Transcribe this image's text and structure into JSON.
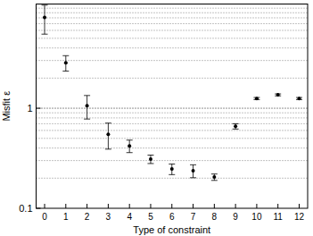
{
  "chart_data": {
    "type": "scatter",
    "x_label": "Type of constraint",
    "y_label": "Misfit ε",
    "x": [
      0,
      1,
      2,
      3,
      4,
      5,
      6,
      7,
      8,
      9,
      10,
      11,
      12
    ],
    "values": [
      8.1,
      2.85,
      1.06,
      0.55,
      0.42,
      0.31,
      0.247,
      0.237,
      0.205,
      0.66,
      1.25,
      1.36,
      1.25
    ],
    "errors": [
      2.6,
      0.5,
      0.28,
      0.16,
      0.06,
      0.03,
      0.03,
      0.035,
      0.015,
      0.04,
      0.03,
      0.03,
      0.03
    ],
    "color": "#000000",
    "marker": "circle",
    "xlim": [
      -0.4,
      12.4
    ],
    "xticks": [
      0,
      1,
      2,
      3,
      4,
      5,
      6,
      7,
      8,
      9,
      10,
      11,
      12
    ],
    "ylim": [
      0.1,
      11
    ],
    "yticks": [
      0.1,
      1
    ],
    "log": "y",
    "grid": true
  }
}
